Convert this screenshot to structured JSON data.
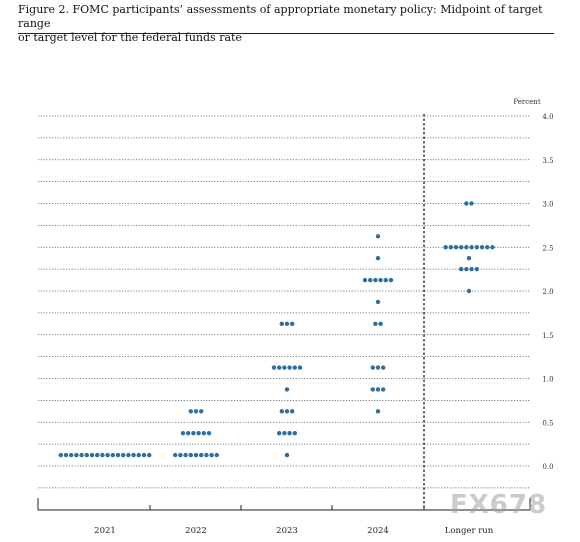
{
  "figure": {
    "title_line1": "Figure 2.  FOMC participants’ assessments of appropriate monetary policy:  Midpoint of target range",
    "title_line2": "or target level for the federal funds rate"
  },
  "watermark": "FX678",
  "colors": {
    "dot": "#2e6f9e",
    "gridline": "#555555",
    "axis": "#222222"
  },
  "chart_data": {
    "type": "scatter",
    "unit_label": "Percent",
    "categories": [
      "2021",
      "2022",
      "2023",
      "2024",
      "Longer run"
    ],
    "ylim": [
      -0.5,
      4.0
    ],
    "y_ticks": [
      {
        "value": 4.0,
        "label": "4.0"
      },
      {
        "value": 3.5,
        "label": "3.5"
      },
      {
        "value": 3.0,
        "label": "3.0"
      },
      {
        "value": 2.5,
        "label": "2.5"
      },
      {
        "value": 2.0,
        "label": "2.0"
      },
      {
        "value": 1.5,
        "label": "1.5"
      },
      {
        "value": 1.0,
        "label": "1.0"
      },
      {
        "value": 0.5,
        "label": "0.5"
      },
      {
        "value": 0.0,
        "label": "0.0"
      }
    ],
    "gridlines": [
      4.0,
      3.75,
      3.5,
      3.25,
      3.0,
      2.75,
      2.5,
      2.25,
      2.0,
      1.75,
      1.5,
      1.25,
      1.0,
      0.75,
      0.5,
      0.25,
      0.0,
      -0.25
    ],
    "dots": [
      {
        "category": "2021",
        "rate": 0.125,
        "count": 18
      },
      {
        "category": "2022",
        "rate": 0.625,
        "count": 3
      },
      {
        "category": "2022",
        "rate": 0.375,
        "count": 6
      },
      {
        "category": "2022",
        "rate": 0.125,
        "count": 9
      },
      {
        "category": "2023",
        "rate": 1.625,
        "count": 3
      },
      {
        "category": "2023",
        "rate": 1.125,
        "count": 6
      },
      {
        "category": "2023",
        "rate": 0.875,
        "count": 1
      },
      {
        "category": "2023",
        "rate": 0.625,
        "count": 3
      },
      {
        "category": "2023",
        "rate": 0.375,
        "count": 4
      },
      {
        "category": "2023",
        "rate": 0.125,
        "count": 1
      },
      {
        "category": "2024",
        "rate": 2.625,
        "count": 1
      },
      {
        "category": "2024",
        "rate": 2.375,
        "count": 1
      },
      {
        "category": "2024",
        "rate": 2.125,
        "count": 6
      },
      {
        "category": "2024",
        "rate": 1.875,
        "count": 1
      },
      {
        "category": "2024",
        "rate": 1.625,
        "count": 2
      },
      {
        "category": "2024",
        "rate": 1.125,
        "count": 3
      },
      {
        "category": "2024",
        "rate": 0.875,
        "count": 3
      },
      {
        "category": "2024",
        "rate": 0.625,
        "count": 1
      },
      {
        "category": "Longer run",
        "rate": 3.0,
        "count": 2
      },
      {
        "category": "Longer run",
        "rate": 2.5,
        "count": 10
      },
      {
        "category": "Longer run",
        "rate": 2.375,
        "count": 1
      },
      {
        "category": "Longer run",
        "rate": 2.25,
        "count": 4
      },
      {
        "category": "Longer run",
        "rate": 2.0,
        "count": 1
      }
    ],
    "grid": true,
    "divider_before": "Longer run"
  }
}
